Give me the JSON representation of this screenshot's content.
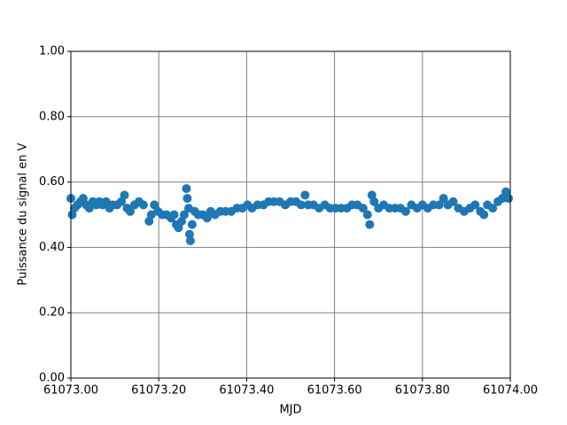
{
  "chart_data": {
    "type": "scatter",
    "x_label": "MJD",
    "y_label": "Puissance du signal en V",
    "color": "#1f77b4",
    "grid": true,
    "xlim": [
      61073.0,
      61074.0
    ],
    "xticks": [
      {
        "value": 61073.0,
        "label": "61073.00"
      },
      {
        "value": 61073.2,
        "label": "61073.20"
      },
      {
        "value": 61073.4,
        "label": "61073.40"
      },
      {
        "value": 61073.6,
        "label": "61073.60"
      },
      {
        "value": 61073.8,
        "label": "61073.80"
      },
      {
        "value": 61074.0,
        "label": "61074.00"
      }
    ],
    "ylim": [
      0,
      1
    ],
    "yticks": [
      {
        "value": 0,
        "label": "0.00"
      },
      {
        "value": 0.2,
        "label": "0.20"
      },
      {
        "value": 0.4,
        "label": "0.40"
      },
      {
        "value": 0.6,
        "label": "0.60"
      },
      {
        "value": 0.8,
        "label": "0.80"
      },
      {
        "value": 1,
        "label": "1.00"
      }
    ],
    "x": [
      61073.0,
      61073.003,
      61073.008,
      61073.015,
      61073.022,
      61073.028,
      61073.035,
      61073.042,
      61073.05,
      61073.058,
      61073.065,
      61073.072,
      61073.08,
      61073.088,
      61073.095,
      61073.105,
      61073.115,
      61073.122,
      61073.128,
      61073.135,
      61073.145,
      61073.155,
      61073.165,
      61073.178,
      61073.183,
      61073.19,
      61073.198,
      61073.208,
      61073.218,
      61073.228,
      61073.235,
      61073.24,
      61073.245,
      61073.252,
      61073.258,
      61073.263,
      61073.265,
      61073.268,
      61073.27,
      61073.272,
      61073.276,
      61073.282,
      61073.29,
      61073.3,
      61073.31,
      61073.318,
      61073.328,
      61073.34,
      61073.352,
      61073.365,
      61073.378,
      61073.39,
      61073.402,
      61073.412,
      61073.425,
      61073.438,
      61073.45,
      61073.462,
      61073.475,
      61073.488,
      61073.5,
      61073.512,
      61073.524,
      61073.533,
      61073.54,
      61073.552,
      61073.565,
      61073.578,
      61073.59,
      61073.602,
      61073.615,
      61073.628,
      61073.64,
      61073.652,
      61073.665,
      61073.675,
      61073.68,
      61073.685,
      61073.69,
      61073.7,
      61073.712,
      61073.725,
      61073.738,
      61073.75,
      61073.762,
      61073.775,
      61073.788,
      61073.8,
      61073.812,
      61073.825,
      61073.838,
      61073.848,
      61073.858,
      61073.87,
      61073.882,
      61073.895,
      61073.908,
      61073.92,
      61073.932,
      61073.94,
      61073.948,
      61073.96,
      61073.972,
      61073.982,
      61073.99,
      61073.996
    ],
    "values": [
      0.55,
      0.5,
      0.52,
      0.53,
      0.54,
      0.55,
      0.53,
      0.52,
      0.54,
      0.53,
      0.54,
      0.53,
      0.54,
      0.52,
      0.53,
      0.53,
      0.54,
      0.56,
      0.52,
      0.51,
      0.53,
      0.54,
      0.53,
      0.48,
      0.5,
      0.53,
      0.51,
      0.5,
      0.5,
      0.49,
      0.5,
      0.47,
      0.46,
      0.48,
      0.5,
      0.58,
      0.55,
      0.52,
      0.44,
      0.42,
      0.47,
      0.51,
      0.5,
      0.5,
      0.49,
      0.51,
      0.5,
      0.51,
      0.51,
      0.51,
      0.52,
      0.52,
      0.53,
      0.52,
      0.53,
      0.53,
      0.54,
      0.54,
      0.54,
      0.53,
      0.54,
      0.54,
      0.53,
      0.56,
      0.53,
      0.53,
      0.52,
      0.53,
      0.52,
      0.52,
      0.52,
      0.52,
      0.53,
      0.53,
      0.52,
      0.5,
      0.47,
      0.56,
      0.54,
      0.52,
      0.53,
      0.52,
      0.52,
      0.52,
      0.51,
      0.53,
      0.52,
      0.53,
      0.52,
      0.53,
      0.53,
      0.55,
      0.53,
      0.54,
      0.52,
      0.51,
      0.52,
      0.53,
      0.51,
      0.5,
      0.53,
      0.52,
      0.54,
      0.55,
      0.57,
      0.55
    ]
  }
}
